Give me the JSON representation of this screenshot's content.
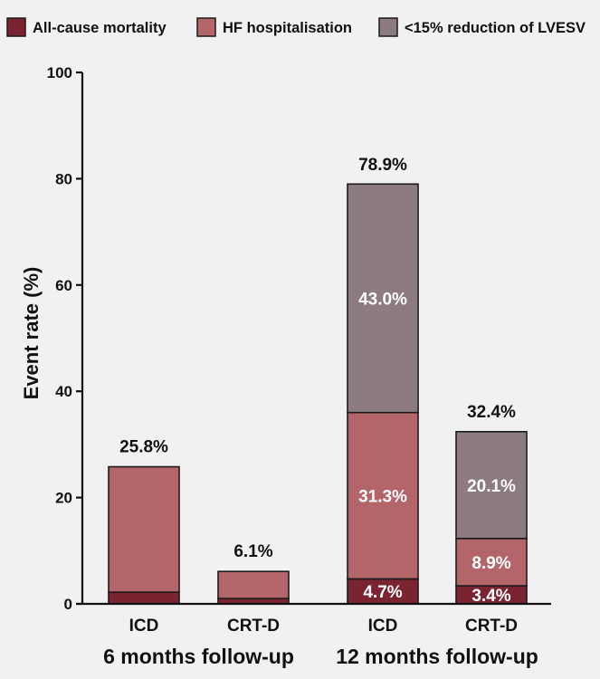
{
  "chart_data": {
    "type": "bar",
    "stacked": true,
    "ylabel": "Event rate (%)",
    "ylim": [
      0,
      100
    ],
    "yticks": [
      0,
      20,
      40,
      60,
      80,
      100
    ],
    "grid": false,
    "legend": "top",
    "categories": [
      "ICD",
      "CRT-D",
      "ICD",
      "CRT-D"
    ],
    "groups": [
      {
        "label": "6 months follow-up",
        "category_index": [
          0,
          1
        ]
      },
      {
        "label": "12 months follow-up",
        "category_index": [
          2,
          3
        ]
      }
    ],
    "series": [
      {
        "name": "All-cause mortality",
        "color": "#7a2432",
        "values": [
          2.2,
          1.0,
          4.7,
          3.4
        ],
        "value_labels": [
          null,
          null,
          "4.7%",
          "3.4%"
        ]
      },
      {
        "name": "HF hospitalisation",
        "color": "#b4656a",
        "values": [
          23.6,
          5.1,
          31.3,
          8.9
        ],
        "value_labels": [
          null,
          null,
          "31.3%",
          "8.9%"
        ]
      },
      {
        "name": "<15% reduction of LVESV",
        "color": "#8c7b7f",
        "values": [
          0,
          0,
          43.0,
          20.1
        ],
        "value_labels": [
          null,
          null,
          "43.0%",
          "20.1%"
        ]
      }
    ],
    "totals": [
      25.8,
      6.1,
      78.9,
      32.4
    ],
    "total_labels": [
      "25.8%",
      "6.1%",
      "78.9%",
      "32.4%"
    ]
  }
}
